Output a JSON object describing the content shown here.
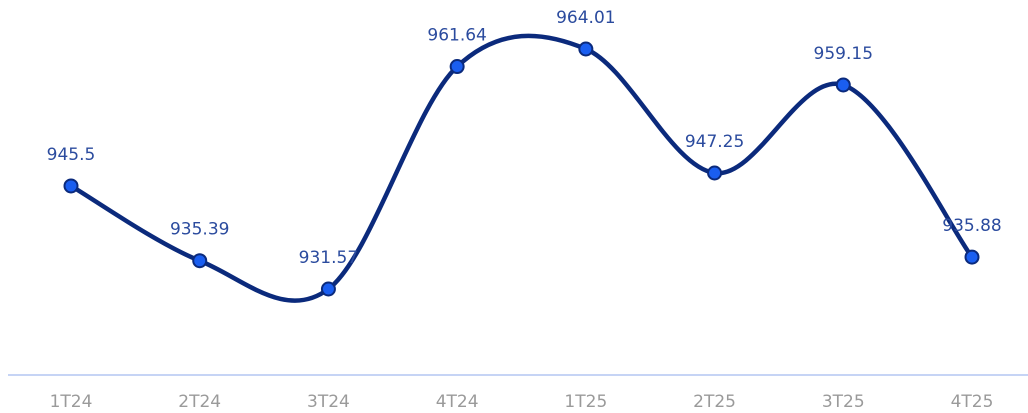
{
  "chart_data": {
    "type": "line",
    "categories": [
      "1T24",
      "2T24",
      "3T24",
      "4T24",
      "1T25",
      "2T25",
      "3T25",
      "4T25"
    ],
    "series": [
      {
        "color": "#0b2a7c",
        "values": [
          945.5,
          935.39,
          931.57,
          961.64,
          964.01,
          947.25,
          959.15,
          935.88
        ]
      }
    ]
  }
}
